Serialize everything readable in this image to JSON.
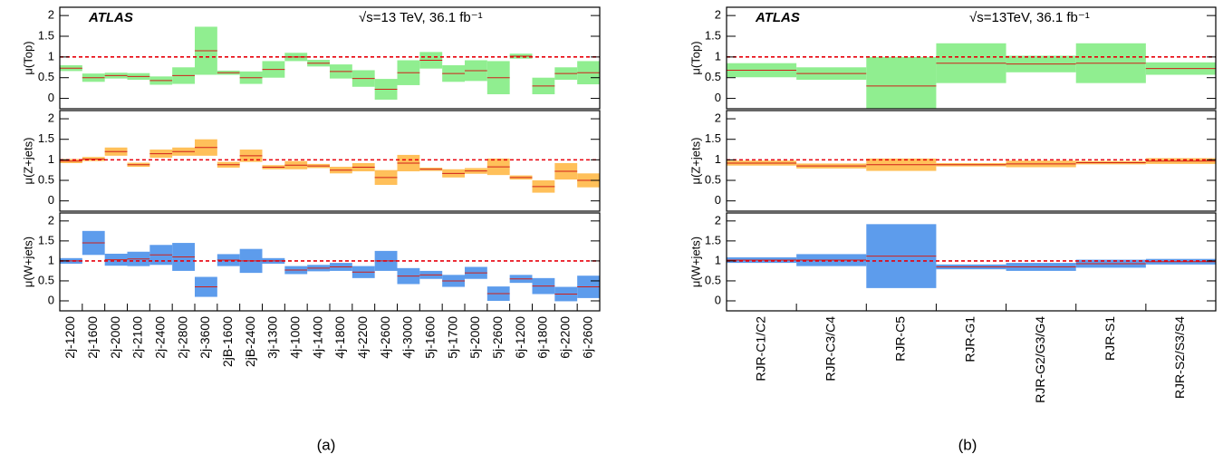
{
  "chart_data": [
    {
      "type": "band",
      "caption": "(a)",
      "annotations": [
        "ATLAS",
        "√s=13 TeV, 36.1 fb⁻¹"
      ],
      "categories": [
        "2j-1200",
        "2j-1600",
        "2j-2000",
        "2j-2100",
        "2j-2400",
        "2j-2800",
        "2j-3600",
        "2jB-1600",
        "2jB-2400",
        "3j-1300",
        "4j-1000",
        "4j-1400",
        "4j-1800",
        "4j-2200",
        "4j-2600",
        "4j-3000",
        "5j-1600",
        "5j-1700",
        "5j-2000",
        "5j-2600",
        "6j-1200",
        "6j-1800",
        "6j-2200",
        "6j-2600"
      ],
      "ylim": [
        -0.25,
        2.2
      ],
      "yticks": [
        0,
        0.5,
        1,
        1.5,
        2
      ],
      "reference_line": 1,
      "panels": [
        {
          "ylabel": "μ(Top)",
          "color": "#90ee90",
          "values": [
            0.73,
            0.5,
            0.55,
            0.53,
            0.43,
            0.55,
            1.15,
            0.62,
            0.5,
            0.7,
            1.0,
            0.85,
            0.65,
            0.48,
            0.22,
            0.62,
            0.92,
            0.6,
            0.67,
            0.5,
            1.02,
            0.3,
            0.6,
            0.62
          ],
          "errors": [
            0.07,
            0.1,
            0.07,
            0.08,
            0.1,
            0.2,
            0.58,
            0.05,
            0.15,
            0.2,
            0.1,
            0.08,
            0.17,
            0.2,
            0.25,
            0.3,
            0.2,
            0.2,
            0.25,
            0.4,
            0.06,
            0.2,
            0.15,
            0.28
          ]
        },
        {
          "ylabel": "μ(Z+jets)",
          "color": "#ffc05a",
          "values": [
            0.97,
            1.02,
            1.2,
            0.88,
            1.15,
            1.2,
            1.3,
            0.88,
            1.1,
            0.82,
            0.87,
            0.85,
            0.75,
            0.82,
            0.57,
            0.92,
            0.77,
            0.67,
            0.73,
            0.83,
            0.57,
            0.35,
            0.72,
            0.5
          ],
          "errors": [
            0.05,
            0.05,
            0.1,
            0.05,
            0.1,
            0.1,
            0.2,
            0.07,
            0.15,
            0.05,
            0.1,
            0.05,
            0.08,
            0.1,
            0.18,
            0.2,
            0.04,
            0.1,
            0.07,
            0.2,
            0.05,
            0.15,
            0.2,
            0.17
          ]
        },
        {
          "ylabel": "μ(W+jets)",
          "color": "#5d9cec",
          "values": [
            1.0,
            1.45,
            1.03,
            1.05,
            1.15,
            1.1,
            0.35,
            1.02,
            1.0,
            1.0,
            0.77,
            0.82,
            0.85,
            0.72,
            1.0,
            0.62,
            0.65,
            0.5,
            0.7,
            0.18,
            0.55,
            0.37,
            0.17,
            0.35
          ],
          "errors": [
            0.07,
            0.3,
            0.15,
            0.18,
            0.25,
            0.35,
            0.25,
            0.15,
            0.3,
            0.07,
            0.1,
            0.08,
            0.1,
            0.15,
            0.25,
            0.2,
            0.1,
            0.15,
            0.15,
            0.18,
            0.1,
            0.2,
            0.18,
            0.28
          ]
        }
      ]
    },
    {
      "type": "band",
      "caption": "(b)",
      "annotations": [
        "ATLAS",
        "√s=13TeV, 36.1 fb⁻¹"
      ],
      "categories": [
        "RJR-C1/C2",
        "RJR-C3/C4",
        "RJR-C5",
        "RJR-G1",
        "RJR-G2/G3/G4",
        "RJR-S1",
        "RJR-S2/S3/S4"
      ],
      "ylim": [
        -0.25,
        2.2
      ],
      "yticks": [
        0,
        0.5,
        1,
        1.5,
        2
      ],
      "reference_line": 1,
      "panels": [
        {
          "ylabel": "μ(Top)",
          "color": "#90ee90",
          "values": [
            0.68,
            0.6,
            0.3,
            0.85,
            0.83,
            0.85,
            0.72
          ],
          "errors": [
            0.17,
            0.15,
            0.7,
            0.48,
            0.2,
            0.48,
            0.15
          ]
        },
        {
          "ylabel": "μ(Z+jets)",
          "color": "#ffc05a",
          "values": [
            0.92,
            0.85,
            0.88,
            0.88,
            0.9,
            0.93,
            0.97
          ],
          "errors": [
            0.06,
            0.06,
            0.15,
            0.04,
            0.08,
            0.04,
            0.07
          ]
        },
        {
          "ylabel": "μ(W+jets)",
          "color": "#5d9cec",
          "values": [
            1.02,
            1.02,
            1.12,
            0.85,
            0.85,
            0.93,
            0.98
          ],
          "errors": [
            0.07,
            0.15,
            0.8,
            0.06,
            0.1,
            0.1,
            0.07
          ]
        }
      ]
    }
  ]
}
